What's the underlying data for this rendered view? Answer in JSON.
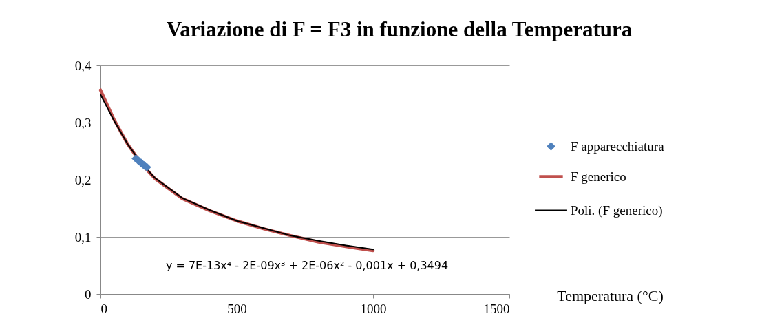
{
  "chart_data": {
    "type": "line",
    "title": "Variazione di  F = F3 in funzione della Temperatura",
    "xlabel": "Temperatura (°C)",
    "series": [
      {
        "name": "F apparecchiatura",
        "type": "scatter",
        "marker": "diamond",
        "color": "#4f81bd",
        "x": [
          130,
          140,
          150,
          160,
          170
        ],
        "values": [
          0.237,
          0.233,
          0.229,
          0.225,
          0.222
        ]
      },
      {
        "name": "F generico",
        "type": "line",
        "color": "#c0504d",
        "x": [
          0,
          50,
          100,
          150,
          200,
          300,
          400,
          500,
          600,
          700,
          800,
          900,
          1000
        ],
        "values": [
          0.357,
          0.305,
          0.262,
          0.228,
          0.202,
          0.167,
          0.146,
          0.128,
          0.114,
          0.102,
          0.091,
          0.083,
          0.076
        ]
      },
      {
        "name": "Poli. (F generico)",
        "type": "line",
        "color": "#000000",
        "x": [
          0,
          50,
          100,
          150,
          200,
          300,
          400,
          500,
          600,
          700,
          800,
          900,
          1000
        ],
        "values": [
          0.349,
          0.303,
          0.262,
          0.229,
          0.203,
          0.168,
          0.147,
          0.128,
          0.115,
          0.102,
          0.093,
          0.085,
          0.078
        ]
      }
    ],
    "xlim": [
      0,
      1500
    ],
    "xticks": [
      0,
      500,
      1000,
      1500
    ],
    "ylim": [
      0,
      0.4
    ],
    "yticks": [
      0,
      {
        "value": 0.1,
        "label": "0,1"
      },
      {
        "value": 0.2,
        "label": "0,2"
      },
      {
        "value": 0.3,
        "label": "0,3"
      },
      {
        "value": 0.4,
        "label": "0,4"
      }
    ],
    "annotations": [
      "y = 7E-13x⁴ - 2E-09x³ + 2E-06x² - 0,001x + 0,3494"
    ],
    "grid": "y",
    "legend": "right",
    "line_style": "solid"
  }
}
